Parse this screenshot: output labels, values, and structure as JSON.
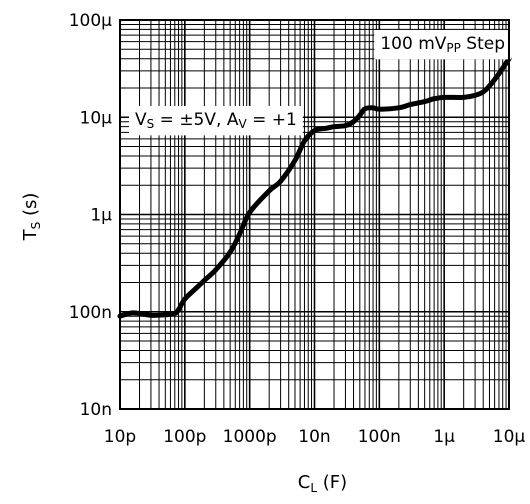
{
  "chart_data": {
    "type": "line",
    "xscale": "log",
    "yscale": "log",
    "xlim": [
      1e-11,
      1e-05
    ],
    "ylim": [
      1e-08,
      0.0001
    ],
    "grid": true,
    "xlabel": {
      "main": "C",
      "sub": "L",
      "unit": "(F)"
    },
    "ylabel": {
      "main": "T",
      "sub": "S",
      "unit": "(s)"
    },
    "x_tick_labels": [
      "10p",
      "100p",
      "1000p",
      "10n",
      "100n",
      "1µ",
      "10µ"
    ],
    "y_tick_labels": [
      "10n",
      "100n",
      "1µ",
      "10µ",
      "100µ"
    ],
    "annotations": [
      {
        "id": "step",
        "parts": [
          [
            "100 mV",
            ""
          ],
          [
            "PP",
            "sub"
          ],
          [
            " Step",
            ""
          ]
        ]
      },
      {
        "id": "cond",
        "parts": [
          [
            "V",
            ""
          ],
          [
            "S",
            "sub"
          ],
          [
            " = ±5V, A",
            ""
          ],
          [
            "V",
            "sub"
          ],
          [
            " = +1",
            ""
          ]
        ]
      }
    ],
    "series": [
      {
        "line_color": "#000000",
        "x": [
          1e-11,
          1.5e-11,
          2e-11,
          3e-11,
          5e-11,
          7e-11,
          8e-11,
          1e-10,
          1.5e-10,
          2e-10,
          3e-10,
          5e-10,
          7e-10,
          1e-09,
          2e-09,
          3e-09,
          5e-09,
          7e-09,
          1e-08,
          1.5e-08,
          2e-08,
          3e-08,
          4e-08,
          5e-08,
          6e-08,
          8e-08,
          1e-07,
          2e-07,
          3e-07,
          5e-07,
          7e-07,
          1e-06,
          2e-06,
          3e-06,
          4e-06,
          5e-06,
          7e-06,
          1e-05
        ],
        "y": [
          9e-08,
          9.7e-08,
          9.6e-08,
          9.2e-08,
          9.3e-08,
          9.6e-08,
          1.05e-07,
          1.35e-07,
          1.75e-07,
          2.1e-07,
          2.7e-07,
          4.1e-07,
          6.3e-07,
          1.05e-06,
          1.75e-06,
          2.2e-06,
          3.6e-06,
          5.7e-06,
          7.3e-06,
          7.7e-06,
          8e-06,
          8.2e-06,
          9e-06,
          1.05e-05,
          1.22e-05,
          1.25e-05,
          1.21e-05,
          1.25e-05,
          1.35e-05,
          1.45e-05,
          1.55e-05,
          1.6e-05,
          1.6e-05,
          1.68e-05,
          1.82e-05,
          2.1e-05,
          2.8e-05,
          4e-05
        ]
      }
    ]
  }
}
